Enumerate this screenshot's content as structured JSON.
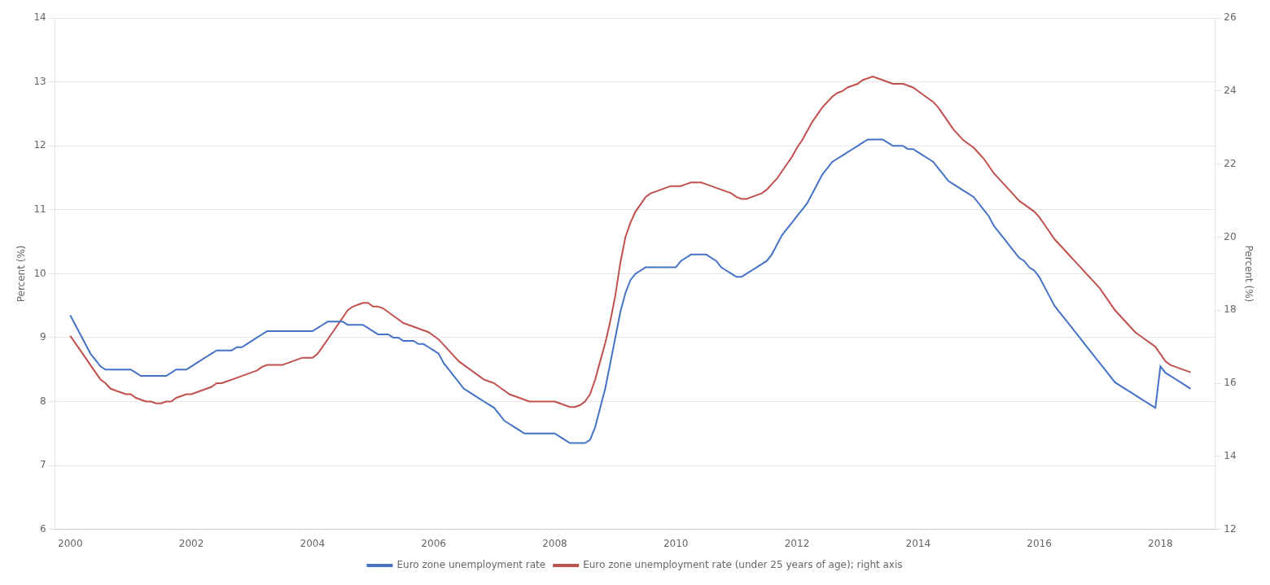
{
  "chart_data": {
    "type": "line",
    "ylabel": "Percent (%)",
    "y2label": "Percent (%)",
    "xlim": [
      1999.75,
      2018.9
    ],
    "xticks": [
      2000,
      2002,
      2004,
      2006,
      2008,
      2010,
      2012,
      2014,
      2016,
      2018
    ],
    "ylim": [
      6,
      14
    ],
    "yticks": [
      6,
      7,
      8,
      9,
      10,
      11,
      12,
      13,
      14
    ],
    "y2lim": [
      12,
      26
    ],
    "y2ticks": [
      12,
      14,
      16,
      18,
      20,
      22,
      24,
      26
    ],
    "grid": true,
    "legend": "bottom",
    "x": [
      2000.0,
      2000.083,
      2000.167,
      2000.25,
      2000.333,
      2000.417,
      2000.5,
      2000.583,
      2000.667,
      2000.75,
      2000.833,
      2000.917,
      2001.0,
      2001.083,
      2001.167,
      2001.25,
      2001.333,
      2001.417,
      2001.5,
      2001.583,
      2001.667,
      2001.75,
      2001.833,
      2001.917,
      2002.0,
      2002.083,
      2002.167,
      2002.25,
      2002.333,
      2002.417,
      2002.5,
      2002.583,
      2002.667,
      2002.75,
      2002.833,
      2002.917,
      2003.0,
      2003.083,
      2003.167,
      2003.25,
      2003.333,
      2003.417,
      2003.5,
      2003.583,
      2003.667,
      2003.75,
      2003.833,
      2003.917,
      2004.0,
      2004.083,
      2004.167,
      2004.25,
      2004.333,
      2004.417,
      2004.5,
      2004.583,
      2004.667,
      2004.75,
      2004.833,
      2004.917,
      2005.0,
      2005.083,
      2005.167,
      2005.25,
      2005.333,
      2005.417,
      2005.5,
      2005.583,
      2005.667,
      2005.75,
      2005.833,
      2005.917,
      2006.0,
      2006.083,
      2006.167,
      2006.25,
      2006.333,
      2006.417,
      2006.5,
      2006.583,
      2006.667,
      2006.75,
      2006.833,
      2006.917,
      2007.0,
      2007.083,
      2007.167,
      2007.25,
      2007.333,
      2007.417,
      2007.5,
      2007.583,
      2007.667,
      2007.75,
      2007.833,
      2007.917,
      2008.0,
      2008.083,
      2008.167,
      2008.25,
      2008.333,
      2008.417,
      2008.5,
      2008.583,
      2008.667,
      2008.75,
      2008.833,
      2008.917,
      2009.0,
      2009.083,
      2009.167,
      2009.25,
      2009.333,
      2009.417,
      2009.5,
      2009.583,
      2009.667,
      2009.75,
      2009.833,
      2009.917,
      2010.0,
      2010.083,
      2010.167,
      2010.25,
      2010.333,
      2010.417,
      2010.5,
      2010.583,
      2010.667,
      2010.75,
      2010.833,
      2010.917,
      2011.0,
      2011.083,
      2011.167,
      2011.25,
      2011.333,
      2011.417,
      2011.5,
      2011.583,
      2011.667,
      2011.75,
      2011.833,
      2011.917,
      2012.0,
      2012.083,
      2012.167,
      2012.25,
      2012.333,
      2012.417,
      2012.5,
      2012.583,
      2012.667,
      2012.75,
      2012.833,
      2012.917,
      2013.0,
      2013.083,
      2013.167,
      2013.25,
      2013.333,
      2013.417,
      2013.5,
      2013.583,
      2013.667,
      2013.75,
      2013.833,
      2013.917,
      2014.0,
      2014.083,
      2014.167,
      2014.25,
      2014.333,
      2014.417,
      2014.5,
      2014.583,
      2014.667,
      2014.75,
      2014.833,
      2014.917,
      2015.0,
      2015.083,
      2015.167,
      2015.25,
      2015.333,
      2015.417,
      2015.5,
      2015.583,
      2015.667,
      2015.75,
      2015.833,
      2015.917,
      2016.0,
      2016.083,
      2016.167,
      2016.25,
      2016.333,
      2016.417,
      2016.5,
      2016.583,
      2016.667,
      2016.75,
      2016.833,
      2016.917,
      2017.0,
      2017.083,
      2017.167,
      2017.25,
      2017.333,
      2017.417,
      2017.5,
      2017.583,
      2017.667,
      2017.75,
      2017.833,
      2017.917,
      2018.0,
      2018.083,
      2018.167,
      2018.25,
      2018.333,
      2018.417,
      2018.5
    ],
    "series": [
      {
        "name": "Euro zone unemployment rate",
        "color": "#4472C4",
        "axis": "y",
        "values": [
          9.35,
          9.2,
          9.05,
          8.9,
          8.75,
          8.65,
          8.55,
          8.5,
          8.5,
          8.5,
          8.5,
          8.5,
          8.5,
          8.45,
          8.4,
          8.4,
          8.4,
          8.4,
          8.4,
          8.4,
          8.45,
          8.5,
          8.5,
          8.5,
          8.55,
          8.6,
          8.65,
          8.7,
          8.75,
          8.8,
          8.8,
          8.8,
          8.8,
          8.85,
          8.85,
          8.9,
          8.95,
          9.0,
          9.05,
          9.1,
          9.1,
          9.1,
          9.1,
          9.1,
          9.1,
          9.1,
          9.1,
          9.1,
          9.1,
          9.15,
          9.2,
          9.25,
          9.25,
          9.25,
          9.25,
          9.2,
          9.2,
          9.2,
          9.2,
          9.15,
          9.1,
          9.05,
          9.05,
          9.05,
          9.0,
          9.0,
          8.95,
          8.95,
          8.95,
          8.9,
          8.9,
          8.85,
          8.8,
          8.75,
          8.6,
          8.5,
          8.4,
          8.3,
          8.2,
          8.15,
          8.1,
          8.05,
          8.0,
          7.95,
          7.9,
          7.8,
          7.7,
          7.65,
          7.6,
          7.55,
          7.5,
          7.5,
          7.5,
          7.5,
          7.5,
          7.5,
          7.5,
          7.45,
          7.4,
          7.35,
          7.35,
          7.35,
          7.35,
          7.4,
          7.6,
          7.9,
          8.2,
          8.6,
          9.0,
          9.4,
          9.7,
          9.9,
          10.0,
          10.05,
          10.1,
          10.1,
          10.1,
          10.1,
          10.1,
          10.1,
          10.1,
          10.2,
          10.25,
          10.3,
          10.3,
          10.3,
          10.3,
          10.25,
          10.2,
          10.1,
          10.05,
          10.0,
          9.95,
          9.95,
          10.0,
          10.05,
          10.1,
          10.15,
          10.2,
          10.3,
          10.45,
          10.6,
          10.7,
          10.8,
          10.9,
          11.0,
          11.1,
          11.25,
          11.4,
          11.55,
          11.65,
          11.75,
          11.8,
          11.85,
          11.9,
          11.95,
          12.0,
          12.05,
          12.1,
          12.1,
          12.1,
          12.1,
          12.05,
          12.0,
          12.0,
          12.0,
          11.95,
          11.95,
          11.9,
          11.85,
          11.8,
          11.75,
          11.65,
          11.55,
          11.45,
          11.4,
          11.35,
          11.3,
          11.25,
          11.2,
          11.1,
          11.0,
          10.9,
          10.75,
          10.65,
          10.55,
          10.45,
          10.35,
          10.25,
          10.2,
          10.1,
          10.05,
          9.95,
          9.8,
          9.65,
          9.5,
          9.4,
          9.3,
          9.2,
          9.1,
          9.0,
          8.9,
          8.8,
          8.7,
          8.6,
          8.5,
          8.4,
          8.3,
          8.25,
          8.2,
          8.15,
          8.1,
          8.05,
          8.0,
          7.95,
          7.9,
          8.55,
          8.45,
          8.4,
          8.35,
          8.3,
          8.25,
          8.2
        ]
      },
      {
        "name": "Euro zone unemployment rate (under 25 years of age); right axis",
        "color": "#C0504D",
        "axis": "y2",
        "values": [
          17.3,
          17.1,
          16.9,
          16.7,
          16.5,
          16.3,
          16.1,
          16.0,
          15.85,
          15.8,
          15.75,
          15.7,
          15.7,
          15.6,
          15.55,
          15.5,
          15.5,
          15.45,
          15.45,
          15.5,
          15.5,
          15.6,
          15.65,
          15.7,
          15.7,
          15.75,
          15.8,
          15.85,
          15.9,
          16.0,
          16.0,
          16.05,
          16.1,
          16.15,
          16.2,
          16.25,
          16.3,
          16.35,
          16.45,
          16.5,
          16.5,
          16.5,
          16.5,
          16.55,
          16.6,
          16.65,
          16.7,
          16.7,
          16.7,
          16.8,
          17.0,
          17.2,
          17.4,
          17.6,
          17.8,
          18.0,
          18.1,
          18.15,
          18.2,
          18.2,
          18.1,
          18.1,
          18.05,
          17.95,
          17.85,
          17.75,
          17.65,
          17.6,
          17.55,
          17.5,
          17.45,
          17.4,
          17.3,
          17.2,
          17.05,
          16.9,
          16.75,
          16.6,
          16.5,
          16.4,
          16.3,
          16.2,
          16.1,
          16.05,
          16.0,
          15.9,
          15.8,
          15.7,
          15.65,
          15.6,
          15.55,
          15.5,
          15.5,
          15.5,
          15.5,
          15.5,
          15.5,
          15.45,
          15.4,
          15.35,
          15.35,
          15.4,
          15.5,
          15.7,
          16.1,
          16.6,
          17.1,
          17.7,
          18.4,
          19.3,
          20.0,
          20.4,
          20.7,
          20.9,
          21.1,
          21.2,
          21.25,
          21.3,
          21.35,
          21.4,
          21.4,
          21.4,
          21.45,
          21.5,
          21.5,
          21.5,
          21.45,
          21.4,
          21.35,
          21.3,
          21.25,
          21.2,
          21.1,
          21.05,
          21.05,
          21.1,
          21.15,
          21.2,
          21.3,
          21.45,
          21.6,
          21.8,
          22.0,
          22.2,
          22.45,
          22.65,
          22.9,
          23.15,
          23.35,
          23.55,
          23.7,
          23.85,
          23.95,
          24.0,
          24.1,
          24.15,
          24.2,
          24.3,
          24.35,
          24.4,
          24.35,
          24.3,
          24.25,
          24.2,
          24.2,
          24.2,
          24.15,
          24.1,
          24.0,
          23.9,
          23.8,
          23.7,
          23.55,
          23.35,
          23.15,
          22.95,
          22.8,
          22.65,
          22.55,
          22.45,
          22.3,
          22.15,
          21.95,
          21.75,
          21.6,
          21.45,
          21.3,
          21.15,
          21.0,
          20.9,
          20.8,
          20.7,
          20.55,
          20.35,
          20.15,
          19.95,
          19.8,
          19.65,
          19.5,
          19.35,
          19.2,
          19.05,
          18.9,
          18.75,
          18.6,
          18.4,
          18.2,
          18.0,
          17.85,
          17.7,
          17.55,
          17.4,
          17.3,
          17.2,
          17.1,
          17.0,
          16.8,
          16.6,
          16.5,
          16.45,
          16.4,
          16.35,
          16.3
        ]
      }
    ]
  }
}
